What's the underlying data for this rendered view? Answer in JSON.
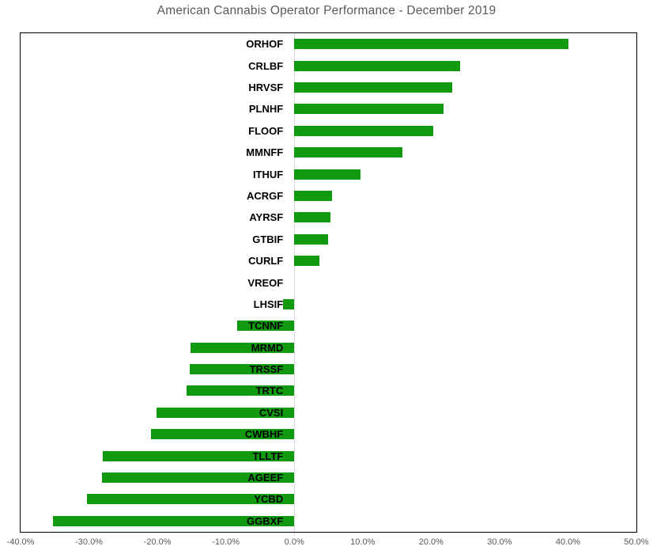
{
  "chart": {
    "title": "American Cannabis Operator Performance - December 2019"
  },
  "colors": {
    "bar": "#0f9a0f",
    "title_text": "#595959",
    "tick_text": "#595959",
    "category_text": "#000000",
    "plot_border": "#000000",
    "zero_line": "#d9d9d9",
    "background": "#ffffff"
  },
  "chart_data": {
    "type": "bar",
    "orientation": "horizontal",
    "title": "American Cannabis Operator Performance - December 2019",
    "categories": [
      "ORHOF",
      "CRLBF",
      "HRVSF",
      "PLNHF",
      "FLOOF",
      "MMNFF",
      "ITHUF",
      "ACRGF",
      "AYRSF",
      "GTBIF",
      "CURLF",
      "VREOF",
      "LHSIF",
      "TCNNF",
      "MRMD",
      "TRSSF",
      "TRTC",
      "CVSI",
      "CWBHF",
      "TLLTF",
      "AGEEF",
      "YCBD",
      "GGBXF"
    ],
    "values": [
      40.1,
      24.2,
      23.1,
      21.8,
      20.3,
      15.8,
      9.7,
      5.5,
      5.3,
      4.9,
      3.7,
      0.0,
      -1.6,
      -8.4,
      -15.2,
      -15.3,
      -15.7,
      -20.1,
      -20.9,
      -28.0,
      -28.1,
      -30.3,
      -35.3
    ],
    "value_unit": "%",
    "xlabel": "",
    "ylabel": "",
    "xlim": [
      -40,
      50
    ],
    "x_ticks": [
      {
        "label": "-40.0%",
        "value": -40
      },
      {
        "label": "-30.0%",
        "value": -30
      },
      {
        "label": "-20.0%",
        "value": -20
      },
      {
        "label": "-10.0%",
        "value": -10
      },
      {
        "label": "0.0%",
        "value": 0
      },
      {
        "label": "10.0%",
        "value": 10
      },
      {
        "label": "20.0%",
        "value": 20
      },
      {
        "label": "30.0%",
        "value": 30
      },
      {
        "label": "40.0%",
        "value": 40
      },
      {
        "label": "50.0%",
        "value": 50
      }
    ],
    "grid": false,
    "legend": false,
    "bar_color": "#0f9a0f"
  }
}
